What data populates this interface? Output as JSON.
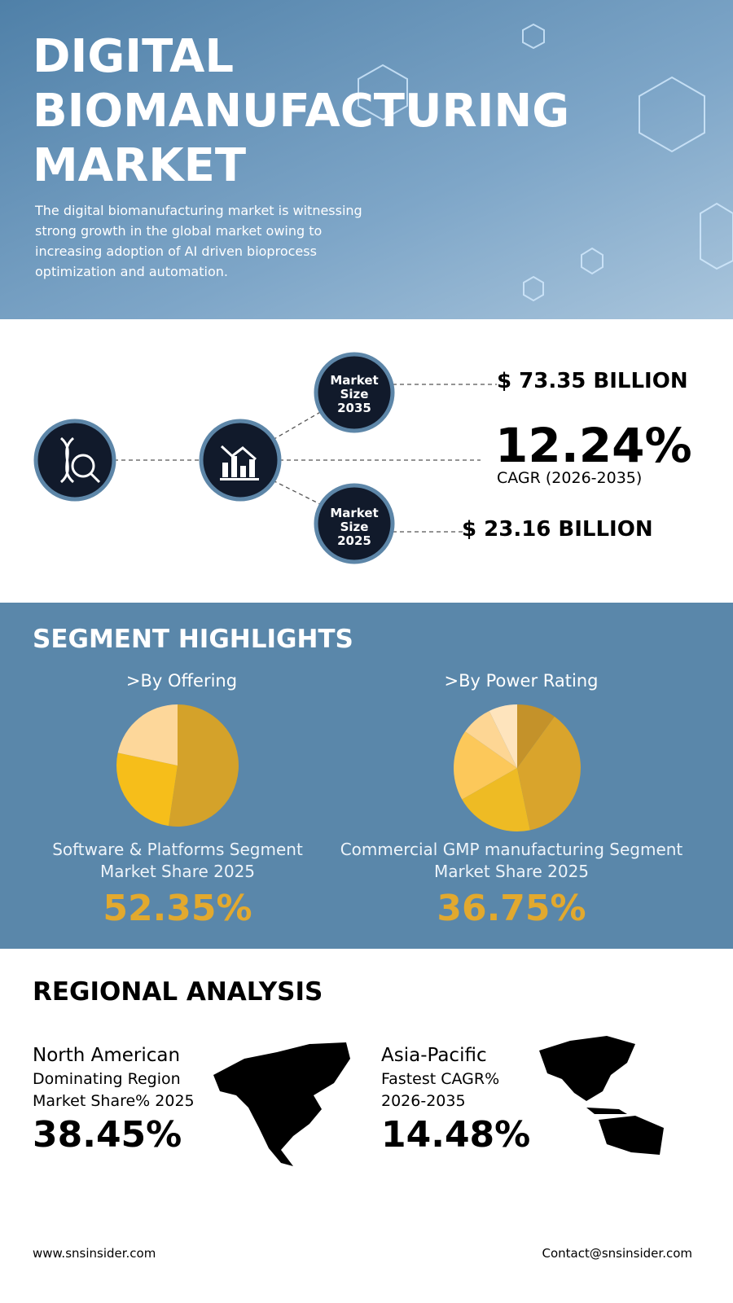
{
  "header": {
    "title_lines": [
      "DIGITAL",
      "BIOMANUFACTURING",
      "MARKET"
    ],
    "description_lines": [
      "The digital biomanufacturing market is witnessing",
      "strong growth in the global market owing to",
      "increasing adoption of AI driven bioprocess",
      "optimization and automation."
    ]
  },
  "market": {
    "size_2035": {
      "label_lines": [
        "Market",
        "Size",
        "2035"
      ],
      "value": "$ 73.35 BILLION"
    },
    "cagr": {
      "value": "12.24%",
      "label": "CAGR (2026-2035)"
    },
    "size_2025": {
      "label_lines": [
        "Market",
        "Size",
        "2025"
      ],
      "value": "$ 23.16 BILLION"
    }
  },
  "segments": {
    "title": "SEGMENT HIGHLIGHTS",
    "items": [
      {
        "heading": ">By Offering",
        "slices": [
          {
            "value": 52.35,
            "color": "#d4a22a"
          },
          {
            "value": 26,
            "color": "#f6be1a"
          },
          {
            "value": 21.65,
            "color": "#fdd79a"
          }
        ],
        "caption_lines": [
          "Software & Platforms Segment",
          "Market Share 2025"
        ],
        "share": "52.35%"
      },
      {
        "heading": ">By Power Rating",
        "slices": [
          {
            "value": 10,
            "color": "#c4922a"
          },
          {
            "value": 36.75,
            "color": "#d9a42c"
          },
          {
            "value": 20,
            "color": "#eebb24"
          },
          {
            "value": 18,
            "color": "#fcc85a"
          },
          {
            "value": 8,
            "color": "#fdd694"
          },
          {
            "value": 7.25,
            "color": "#fee4bd"
          }
        ],
        "caption_lines": [
          "Commercial GMP manufacturing Segment",
          "Market Share 2025"
        ],
        "share": "36.75%"
      }
    ]
  },
  "regional": {
    "title": "REGIONAL ANALYSIS",
    "items": [
      {
        "lines": [
          "North American",
          "Dominating Region",
          "Market Share% 2025"
        ],
        "value": "38.45%"
      },
      {
        "lines": [
          "Asia-Pacific",
          "Fastest CAGR%",
          "2026-2035"
        ],
        "value": "14.48%"
      }
    ]
  },
  "footer": {
    "website": "www.snsinsider.com",
    "contact": "Contact@snsinsider.com"
  }
}
